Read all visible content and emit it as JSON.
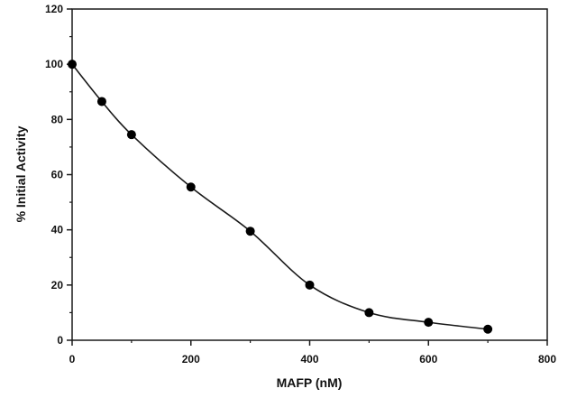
{
  "chart_data": {
    "type": "line",
    "xlabel": "MAFP (nM)",
    "ylabel": "% Initial Activity",
    "xlim": [
      0,
      800
    ],
    "ylim": [
      0,
      120
    ],
    "x_ticks": [
      0,
      200,
      400,
      600,
      800
    ],
    "y_ticks": [
      0,
      20,
      40,
      60,
      80,
      100,
      120
    ],
    "grid": false,
    "series": [
      {
        "x": [
          0,
          50,
          100,
          200,
          300,
          400,
          500,
          600,
          700
        ],
        "y": [
          100,
          86.5,
          74.5,
          55.5,
          39.5,
          20,
          10,
          6.5,
          4
        ]
      }
    ],
    "colors": {
      "line": "#1a1a1a",
      "marker": "#000000",
      "axis": "#1a1a1a"
    }
  }
}
